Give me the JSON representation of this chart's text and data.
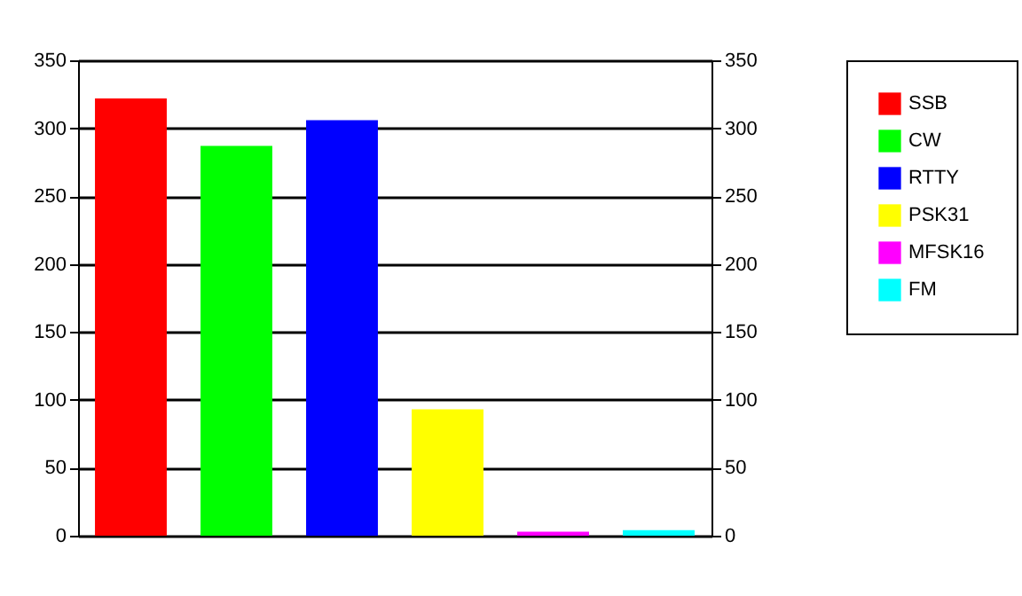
{
  "chart_data": {
    "type": "bar",
    "categories": [
      null,
      null,
      null,
      null,
      null,
      null
    ],
    "series": [
      {
        "name": "SSB",
        "color": "#ff0000",
        "values": [
          322,
          null,
          null,
          null,
          null,
          null
        ]
      },
      {
        "name": "CW",
        "color": "#00ff00",
        "values": [
          null,
          287,
          null,
          null,
          null,
          null
        ]
      },
      {
        "name": "RTTY",
        "color": "#0000ff",
        "values": [
          null,
          null,
          306,
          null,
          null,
          null
        ]
      },
      {
        "name": "PSK31",
        "color": "#ffff00",
        "values": [
          null,
          null,
          null,
          93,
          null,
          null
        ]
      },
      {
        "name": "MFSK16",
        "color": "#ff00ff",
        "values": [
          null,
          null,
          null,
          null,
          3,
          null
        ]
      },
      {
        "name": "FM",
        "color": "#00ffff",
        "values": [
          null,
          null,
          null,
          null,
          null,
          4
        ]
      }
    ],
    "ylim": [
      0,
      350
    ],
    "yticks": [
      0,
      50,
      100,
      150,
      200,
      250,
      300,
      350
    ],
    "y2lim": [
      0,
      350
    ],
    "y2ticks": [
      0,
      50,
      100,
      150,
      200,
      250,
      300,
      350
    ],
    "grid": "y",
    "legend": "right"
  }
}
